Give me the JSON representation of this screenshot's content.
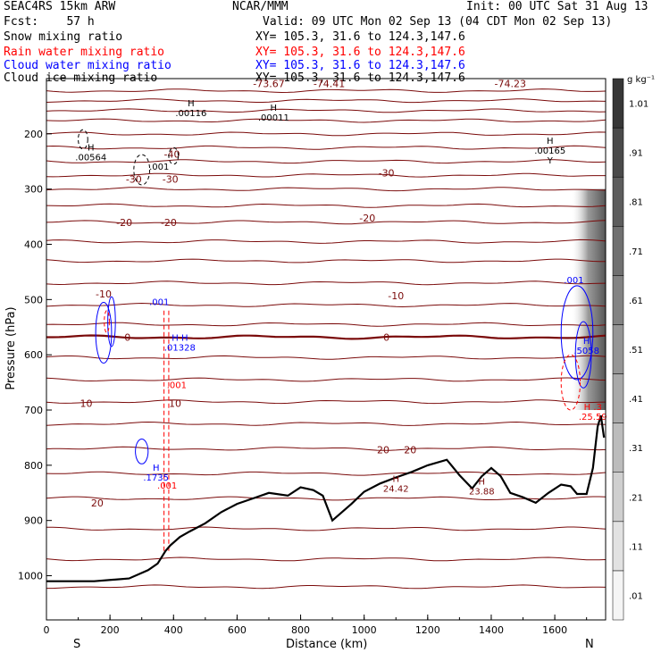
{
  "header": {
    "model": "SEAC4RS 15km ARW",
    "org": "NCAR/MMM",
    "init": "Init: 00 UTC Sat 31 Aug 13",
    "fcst": "Fcst:    57 h",
    "valid": "Valid: 09 UTC Mon 02 Sep 13 (04 CDT Mon 02 Sep 13)",
    "fields": [
      {
        "name": "Snow mixing ratio",
        "xy": "XY= 105.3, 31.6 to 124.3,147.6",
        "color": "#000000"
      },
      {
        "name": "Rain water mixing ratio",
        "xy": "XY= 105.3, 31.6 to 124.3,147.6",
        "color": "#ff0000"
      },
      {
        "name": "Cloud water mixing ratio",
        "xy": "XY= 105.3, 31.6 to 124.3,147.6",
        "color": "#0000ff"
      },
      {
        "name": "Cloud ice mixing ratio",
        "xy": "XY= 105.3, 31.6 to 124.3,147.6",
        "color": "#000000"
      }
    ]
  },
  "chart_data": {
    "type": "contour cross-section",
    "xlabel": "Distance (km)",
    "ylabel": "Pressure (hPa)",
    "xlim": [
      0,
      1760
    ],
    "ylim": [
      1080,
      100
    ],
    "xticks": [
      0,
      200,
      400,
      600,
      800,
      1000,
      1200,
      1400,
      1600
    ],
    "yticks": [
      1000,
      900,
      800,
      700,
      600,
      500,
      400,
      300,
      200
    ],
    "end_labels": {
      "left": "S",
      "right": "N"
    },
    "isotherms": {
      "color": "#7a0a0a",
      "levels_hpa": [
        122,
        140,
        158,
        176,
        200,
        225,
        250,
        275,
        300,
        330,
        360,
        395,
        430,
        470,
        510,
        545,
        568,
        605,
        645,
        685,
        725,
        770,
        815,
        860,
        915,
        970,
        1020
      ],
      "bold_level_hpa": 568,
      "labels": [
        {
          "text": "-73.67",
          "x": 700,
          "p": 109
        },
        {
          "text": "-74.41",
          "x": 890,
          "p": 109
        },
        {
          "text": "-74.23",
          "x": 1460,
          "p": 109
        },
        {
          "text": "-40",
          "x": 395,
          "p": 237
        },
        {
          "text": "-30",
          "x": 275,
          "p": 282
        },
        {
          "text": "-30",
          "x": 390,
          "p": 282
        },
        {
          "text": "-30",
          "x": 1070,
          "p": 271
        },
        {
          "text": "-20",
          "x": 245,
          "p": 360
        },
        {
          "text": "-20",
          "x": 385,
          "p": 360
        },
        {
          "text": "-20",
          "x": 1010,
          "p": 352
        },
        {
          "text": "-10",
          "x": 180,
          "p": 490
        },
        {
          "text": "-10",
          "x": 1100,
          "p": 493
        },
        {
          "text": "0",
          "x": 255,
          "p": 568
        },
        {
          "text": "0",
          "x": 1070,
          "p": 568
        },
        {
          "text": "10",
          "x": 125,
          "p": 688
        },
        {
          "text": "10",
          "x": 405,
          "p": 688
        },
        {
          "text": "20",
          "x": 1060,
          "p": 772
        },
        {
          "text": "20",
          "x": 1145,
          "p": 772
        },
        {
          "text": "20",
          "x": 160,
          "p": 868
        }
      ]
    },
    "terrain": {
      "x": [
        0,
        150,
        260,
        320,
        350,
        375,
        390,
        420,
        450,
        500,
        550,
        600,
        650,
        700,
        760,
        800,
        840,
        870,
        900,
        960,
        1000,
        1050,
        1100,
        1150,
        1200,
        1260,
        1300,
        1340,
        1370,
        1400,
        1430,
        1460,
        1500,
        1540,
        1580,
        1620,
        1650,
        1670,
        1700,
        1720,
        1735,
        1745,
        1755
      ],
      "p": [
        1010,
        1010,
        1005,
        990,
        978,
        955,
        945,
        930,
        920,
        905,
        885,
        870,
        860,
        850,
        855,
        840,
        845,
        855,
        900,
        870,
        848,
        833,
        822,
        812,
        800,
        790,
        818,
        842,
        820,
        805,
        820,
        850,
        858,
        868,
        850,
        835,
        838,
        852,
        852,
        805,
        730,
        710,
        750
      ]
    },
    "extrema_labels": [
      {
        "text": "H\n.00116",
        "x": 455,
        "p": 150,
        "color": "#000000"
      },
      {
        "text": "H\n.00011",
        "x": 715,
        "p": 158,
        "color": "#000000"
      },
      {
        "text": "H\n.00564",
        "x": 140,
        "p": 230,
        "color": "#000000"
      },
      {
        "text": "H\n.00165\nY",
        "x": 1585,
        "p": 218,
        "color": "#000000"
      },
      {
        "text": ".001",
        "x": 355,
        "p": 265,
        "color": "#000000"
      },
      {
        "text": "H\n.1735",
        "x": 345,
        "p": 810,
        "color": "#0000ff"
      },
      {
        "text": ".001",
        "x": 380,
        "p": 842,
        "color": "#ff0000"
      },
      {
        "text": "H\n24.42",
        "x": 1100,
        "p": 830,
        "color": "#7a0a0a"
      },
      {
        "text": "H\n23.88",
        "x": 1370,
        "p": 835,
        "color": "#7a0a0a"
      },
      {
        "text": ".001",
        "x": 355,
        "p": 510,
        "color": "#0000ff"
      },
      {
        "text": "H H\n.01328",
        "x": 420,
        "p": 575,
        "color": "#0000ff"
      },
      {
        "text": ".001",
        "x": 410,
        "p": 660,
        "color": "#ff0000"
      },
      {
        "text": ".001",
        "x": 1660,
        "p": 470,
        "color": "#0000ff"
      },
      {
        "text": "H\n.5058",
        "x": 1700,
        "p": 580,
        "color": "#0000ff"
      },
      {
        "text": "H .3\n.25.59",
        "x": 1720,
        "p": 700,
        "color": "#ff0000"
      }
    ],
    "colorbar": {
      "label": "g kg⁻¹",
      "ticks": [
        ".01",
        ".11",
        ".21",
        ".31",
        ".41",
        ".51",
        ".61",
        ".71",
        ".81",
        ".91",
        "1.01"
      ]
    }
  }
}
